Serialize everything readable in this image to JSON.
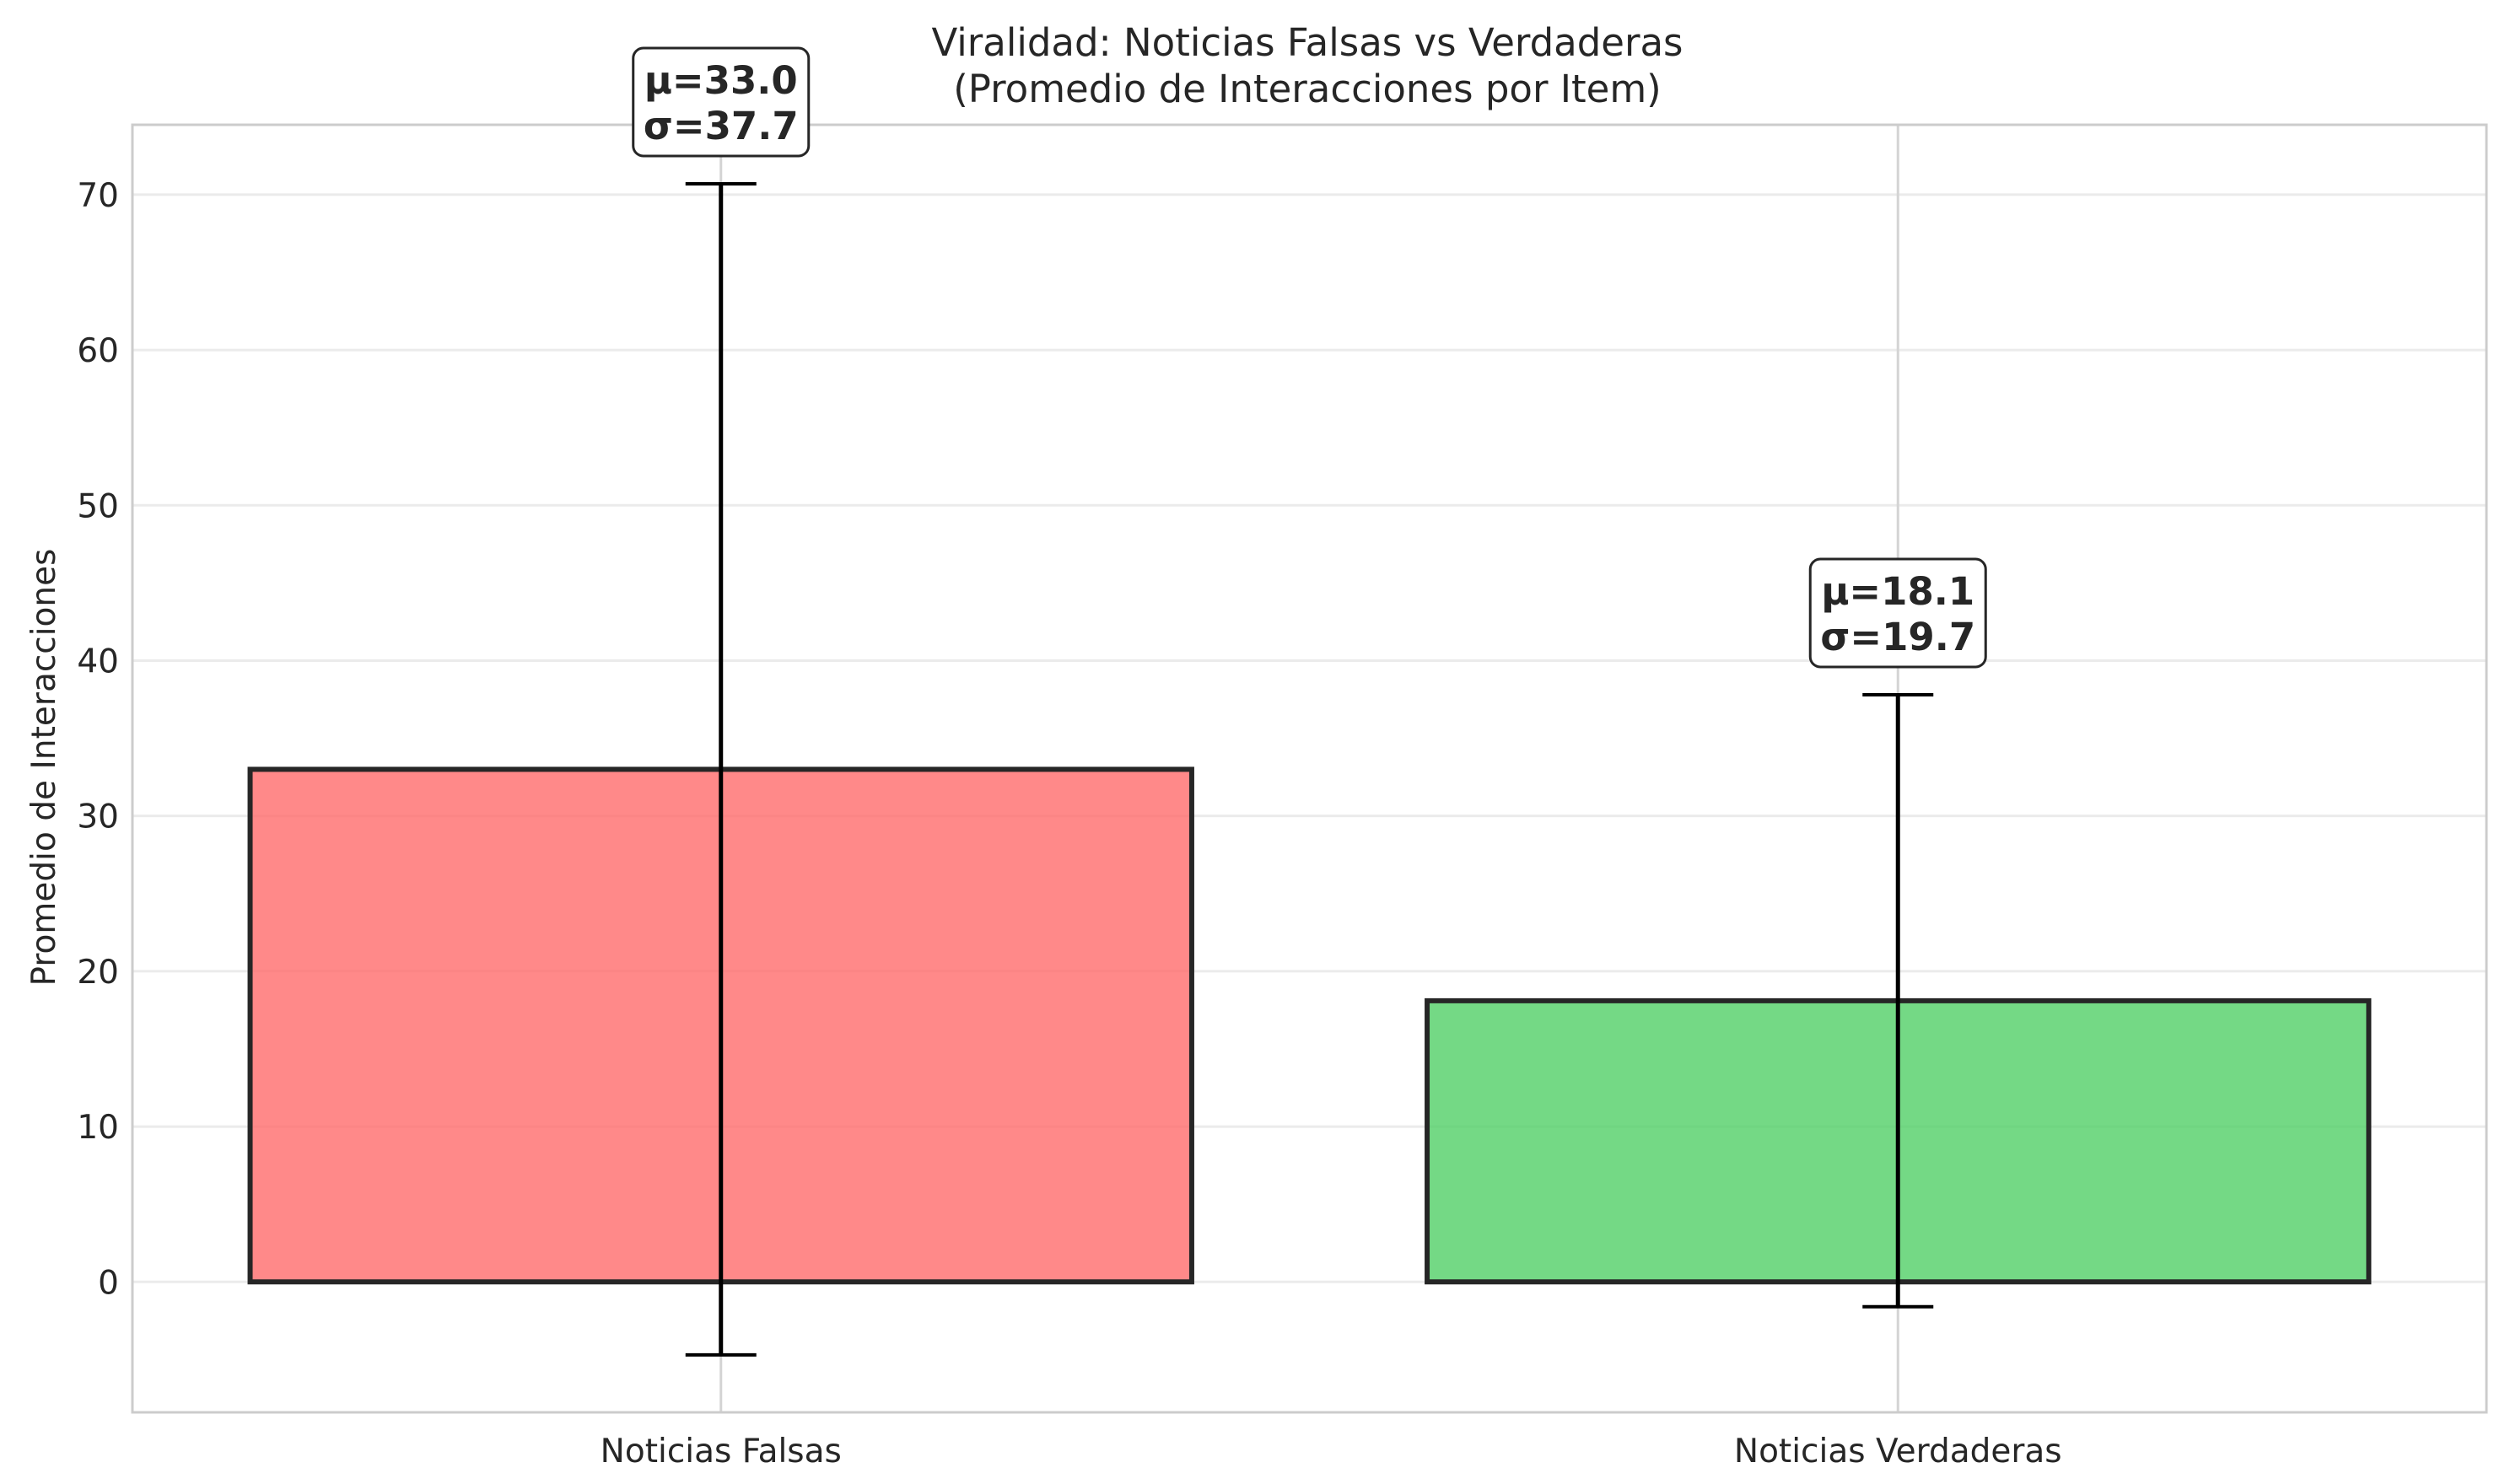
{
  "chart_data": {
    "type": "bar",
    "title_line1": "Viralidad: Noticias Falsas vs Verdaderas",
    "title_line2": "(Promedio de Interacciones por Item)",
    "xlabel": "",
    "ylabel": "Promedio de Interacciones",
    "categories": [
      "Noticias Falsas",
      "Noticias Verdaderas"
    ],
    "values": [
      33.0,
      18.1
    ],
    "errors": [
      37.7,
      19.7
    ],
    "annotations": [
      {
        "mu": "μ=33.0",
        "sigma": "σ=37.7"
      },
      {
        "mu": "μ=18.1",
        "sigma": "σ=19.7"
      }
    ],
    "colors": [
      "#ff6b6b",
      "#51cf66"
    ],
    "ylim": [
      -8.4,
      74.5
    ],
    "yticks": [
      0,
      10,
      20,
      30,
      40,
      50,
      60,
      70
    ],
    "grid": true,
    "legend": "none"
  }
}
